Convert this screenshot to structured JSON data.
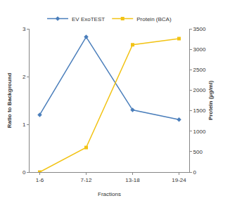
{
  "chart_data": {
    "type": "line",
    "x_label": "Fractions",
    "y_label": "Ratio to Background",
    "y2_label": "Protein (µg/ml)",
    "categories": [
      "1-6",
      "7-12",
      "13-18",
      "19-24"
    ],
    "series": [
      {
        "name": "EV ExoTEST",
        "color": "#4a7ebb",
        "marker": "diamond",
        "values": [
          1.2,
          2.83,
          1.3,
          1.1
        ]
      },
      {
        "name": "Protein (BCA)",
        "color": "#f2c314",
        "marker": "square",
        "axis": "y2",
        "values": [
          0,
          600,
          3110,
          3260
        ]
      }
    ],
    "ylim": [
      0,
      3
    ],
    "yticks": [
      0,
      1,
      2,
      3
    ],
    "y2lim": [
      0,
      3500
    ],
    "y2ticks": [
      0,
      500,
      1000,
      1500,
      2000,
      2500,
      3000,
      3500
    ],
    "grid": false,
    "legend": "top"
  }
}
